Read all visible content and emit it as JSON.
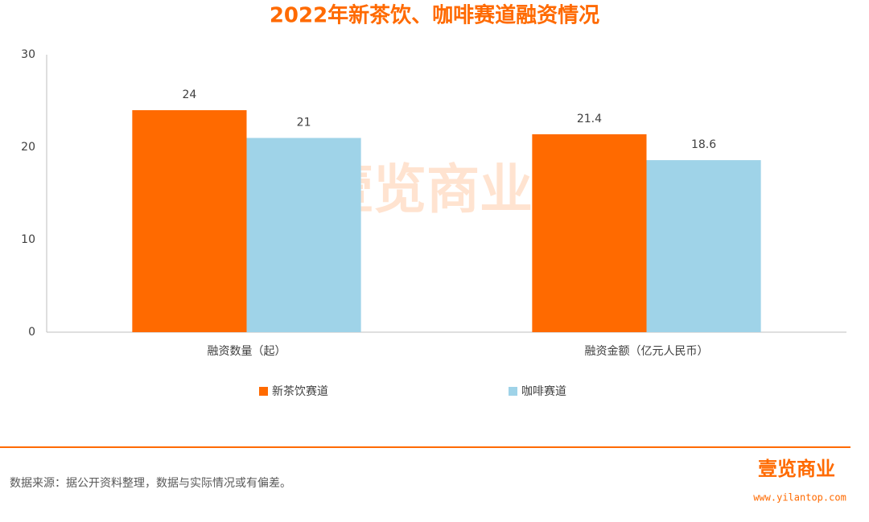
{
  "chart_data": {
    "type": "bar",
    "title": "2022年新茶饮、咖啡赛道融资情况",
    "categories": [
      "融资数量（起）",
      "融资金额（亿元人民币）"
    ],
    "series": [
      {
        "name": "新茶饮赛道",
        "color": "#ff6a00",
        "values": [
          24,
          21.4
        ]
      },
      {
        "name": "咖啡赛道",
        "color": "#9fd3e8",
        "values": [
          21,
          18.6
        ]
      }
    ],
    "ylim": [
      0,
      30
    ],
    "yticks": [
      0,
      10,
      20,
      30
    ],
    "grid": false,
    "legend": "bottom",
    "watermark": "壹览商业"
  },
  "footer": {
    "source": "数据来源：据公开资料整理，数据与实际情况或有偏差。",
    "logo": "壹览商业",
    "url": "www.yilantop.com"
  }
}
